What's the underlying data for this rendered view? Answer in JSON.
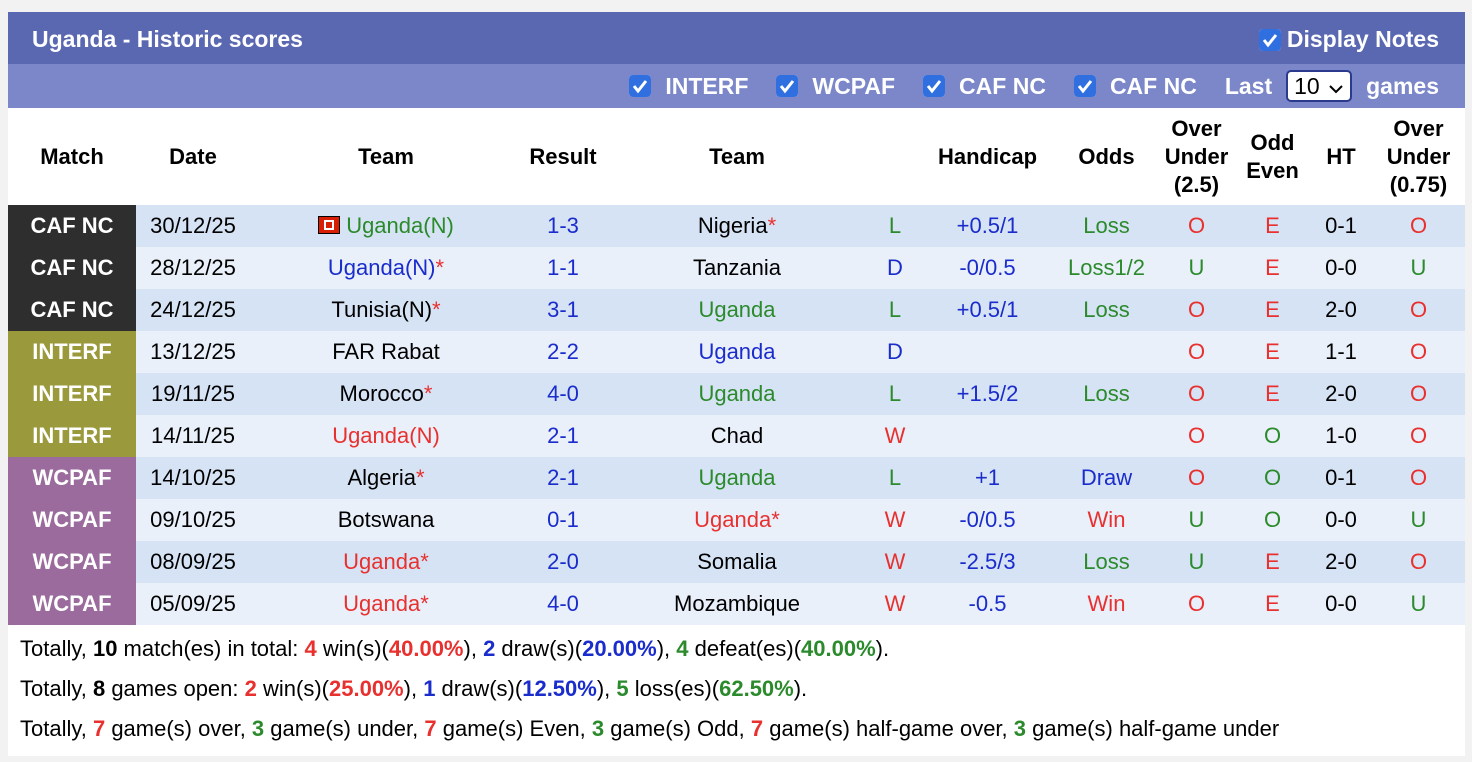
{
  "header": {
    "title": "Uganda - Historic scores",
    "display_notes": "Display Notes"
  },
  "filters": {
    "items": [
      "INTERF",
      "WCPAF",
      "CAF NC",
      "CAF NC"
    ],
    "last": "Last",
    "count": "10",
    "games": "games"
  },
  "table": {
    "columns": [
      "Match",
      "Date",
      "Team",
      "Result",
      "Team",
      "Handicap",
      "Odds",
      "Over Under (2.5)",
      "Odd Even",
      "HT",
      "Over Under (0.75)"
    ],
    "badge_colors": {
      "CAF NC": "#2e2e2e",
      "INTERF": "#9a9a3c",
      "WCPAF": "#9a6b9c"
    },
    "outcome_colors": {
      "W": "#e8312f",
      "L": "#2b8a2b",
      "D": "#1a2ccc"
    },
    "odds_colors": {
      "Win": "#e8312f",
      "Loss": "#2b8a2b",
      "Loss1/2": "#2b8a2b",
      "Draw": "#1a2ccc"
    },
    "ou_colors": {
      "O": "#e8312f",
      "U": "#2b8a2b"
    },
    "oe_colors": {
      "E": "#e8312f",
      "O": "#2b8a2b"
    },
    "rows": [
      {
        "match": "CAF NC",
        "date": "30/12/25",
        "home": "Uganda(N)",
        "home_color": "#2b8a2b",
        "home_flag": true,
        "result": "1-3",
        "away": "Nigeria",
        "away_star": "*",
        "outcome": "L",
        "handicap": "+0.5/1",
        "odds": "Loss",
        "over_under": "O",
        "odd_even": "E",
        "ht": "0-1",
        "over_under_ht": "O"
      },
      {
        "match": "CAF NC",
        "date": "28/12/25",
        "home": "Uganda(N)",
        "home_color": "#1a2ccc",
        "home_star": "*",
        "result": "1-1",
        "away": "Tanzania",
        "outcome": "D",
        "handicap": "-0/0.5",
        "odds": "Loss1/2",
        "over_under": "U",
        "odd_even": "E",
        "ht": "0-0",
        "over_under_ht": "U"
      },
      {
        "match": "CAF NC",
        "date": "24/12/25",
        "home": "Tunisia(N)",
        "home_star": "*",
        "result": "3-1",
        "away": "Uganda",
        "away_color": "#2b8a2b",
        "outcome": "L",
        "handicap": "+0.5/1",
        "odds": "Loss",
        "over_under": "O",
        "odd_even": "E",
        "ht": "2-0",
        "over_under_ht": "O"
      },
      {
        "match": "INTERF",
        "date": "13/12/25",
        "home": "FAR Rabat",
        "result": "2-2",
        "away": "Uganda",
        "away_color": "#1a2ccc",
        "outcome": "D",
        "handicap": null,
        "odds": null,
        "over_under": "O",
        "odd_even": "E",
        "ht": "1-1",
        "over_under_ht": "O"
      },
      {
        "match": "INTERF",
        "date": "19/11/25",
        "home": "Morocco",
        "home_star": "*",
        "result": "4-0",
        "away": "Uganda",
        "away_color": "#2b8a2b",
        "outcome": "L",
        "handicap": "+1.5/2",
        "odds": "Loss",
        "over_under": "O",
        "odd_even": "E",
        "ht": "2-0",
        "over_under_ht": "O"
      },
      {
        "match": "INTERF",
        "date": "14/11/25",
        "home": "Uganda(N)",
        "home_color": "#e8312f",
        "result": "2-1",
        "away": "Chad",
        "outcome": "W",
        "handicap": null,
        "odds": null,
        "over_under": "O",
        "odd_even": "O",
        "ht": "1-0",
        "over_under_ht": "O"
      },
      {
        "match": "WCPAF",
        "date": "14/10/25",
        "home": "Algeria",
        "home_star": "*",
        "result": "2-1",
        "away": "Uganda",
        "away_color": "#2b8a2b",
        "outcome": "L",
        "handicap": "+1",
        "odds": "Draw",
        "over_under": "O",
        "odd_even": "O",
        "ht": "0-1",
        "over_under_ht": "O"
      },
      {
        "match": "WCPAF",
        "date": "09/10/25",
        "home": "Botswana",
        "result": "0-1",
        "away": "Uganda",
        "away_color": "#e8312f",
        "away_star": "*",
        "outcome": "W",
        "handicap": "-0/0.5",
        "odds": "Win",
        "over_under": "U",
        "odd_even": "O",
        "ht": "0-0",
        "over_under_ht": "U"
      },
      {
        "match": "WCPAF",
        "date": "08/09/25",
        "home": "Uganda",
        "home_color": "#e8312f",
        "home_star": "*",
        "result": "2-0",
        "away": "Somalia",
        "outcome": "W",
        "handicap": "-2.5/3",
        "odds": "Loss",
        "over_under": "U",
        "odd_even": "E",
        "ht": "2-0",
        "over_under_ht": "O"
      },
      {
        "match": "WCPAF",
        "date": "05/09/25",
        "home": "Uganda",
        "home_color": "#e8312f",
        "home_star": "*",
        "result": "4-0",
        "away": "Mozambique",
        "outcome": "W",
        "handicap": "-0.5",
        "odds": "Win",
        "over_under": "O",
        "odd_even": "E",
        "ht": "0-0",
        "over_under_ht": "U"
      }
    ]
  },
  "summary": {
    "lines": [
      [
        {
          "text": "Totally, "
        },
        {
          "text": "10",
          "color": "#000000"
        },
        {
          "text": " match(es) in total: "
        },
        {
          "text": "4",
          "color": "#e8312f"
        },
        {
          "text": " win(s)("
        },
        {
          "text": "40.00%",
          "color": "#e8312f"
        },
        {
          "text": "), "
        },
        {
          "text": "2",
          "color": "#1a2ccc"
        },
        {
          "text": " draw(s)("
        },
        {
          "text": "20.00%",
          "color": "#1a2ccc"
        },
        {
          "text": "), "
        },
        {
          "text": "4",
          "color": "#2b8a2b"
        },
        {
          "text": " defeat(es)("
        },
        {
          "text": "40.00%",
          "color": "#2b8a2b"
        },
        {
          "text": ")."
        }
      ],
      [
        {
          "text": "Totally, "
        },
        {
          "text": "8",
          "color": "#000000"
        },
        {
          "text": " games open: "
        },
        {
          "text": "2",
          "color": "#e8312f"
        },
        {
          "text": " win(s)("
        },
        {
          "text": "25.00%",
          "color": "#e8312f"
        },
        {
          "text": "), "
        },
        {
          "text": "1",
          "color": "#1a2ccc"
        },
        {
          "text": " draw(s)("
        },
        {
          "text": "12.50%",
          "color": "#1a2ccc"
        },
        {
          "text": "), "
        },
        {
          "text": "5",
          "color": "#2b8a2b"
        },
        {
          "text": " loss(es)("
        },
        {
          "text": "62.50%",
          "color": "#2b8a2b"
        },
        {
          "text": ")."
        }
      ],
      [
        {
          "text": "Totally, "
        },
        {
          "text": "7",
          "color": "#e8312f"
        },
        {
          "text": " game(s) over, "
        },
        {
          "text": "3",
          "color": "#2b8a2b"
        },
        {
          "text": " game(s) under, "
        },
        {
          "text": "7",
          "color": "#e8312f"
        },
        {
          "text": " game(s) Even, "
        },
        {
          "text": "3",
          "color": "#2b8a2b"
        },
        {
          "text": " game(s) Odd, "
        },
        {
          "text": "7",
          "color": "#e8312f"
        },
        {
          "text": " game(s) half-game over, "
        },
        {
          "text": "3",
          "color": "#2b8a2b"
        },
        {
          "text": " game(s) half-game under"
        }
      ]
    ]
  }
}
